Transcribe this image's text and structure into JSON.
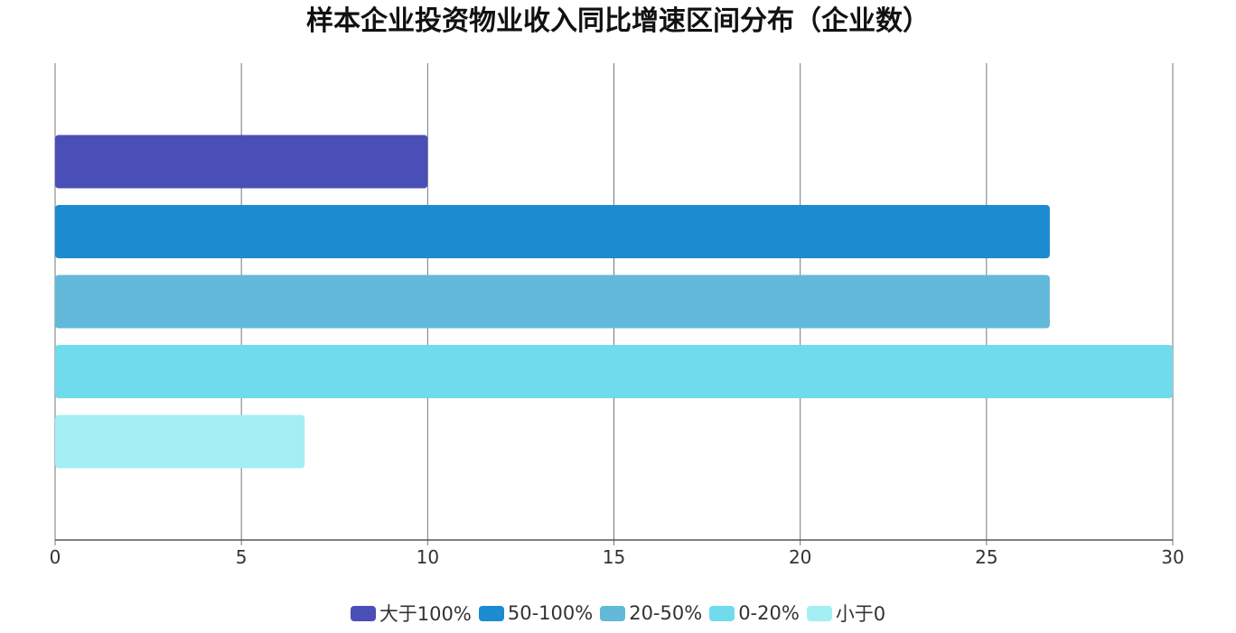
{
  "chart_data": {
    "type": "bar",
    "orientation": "horizontal",
    "title": "样本企业投资物业收入同比增速区间分布（企业数）",
    "series": [
      {
        "name": "大于100%",
        "value": 10,
        "color": "#4a4fb8"
      },
      {
        "name": "50-100%",
        "value": 26.7,
        "color": "#1c8bd0"
      },
      {
        "name": "20-50%",
        "value": 26.7,
        "color": "#62b9d9"
      },
      {
        "name": "0-20%",
        "value": 30,
        "color": "#6fdbec"
      },
      {
        "name": "小于0",
        "value": 6.7,
        "color": "#a4eff3"
      }
    ],
    "xlim": [
      0,
      30
    ],
    "x_ticks": [
      "0",
      "5",
      "10",
      "15",
      "20",
      "25",
      "30"
    ],
    "grid": "vertical",
    "legend_position": "bottom"
  }
}
